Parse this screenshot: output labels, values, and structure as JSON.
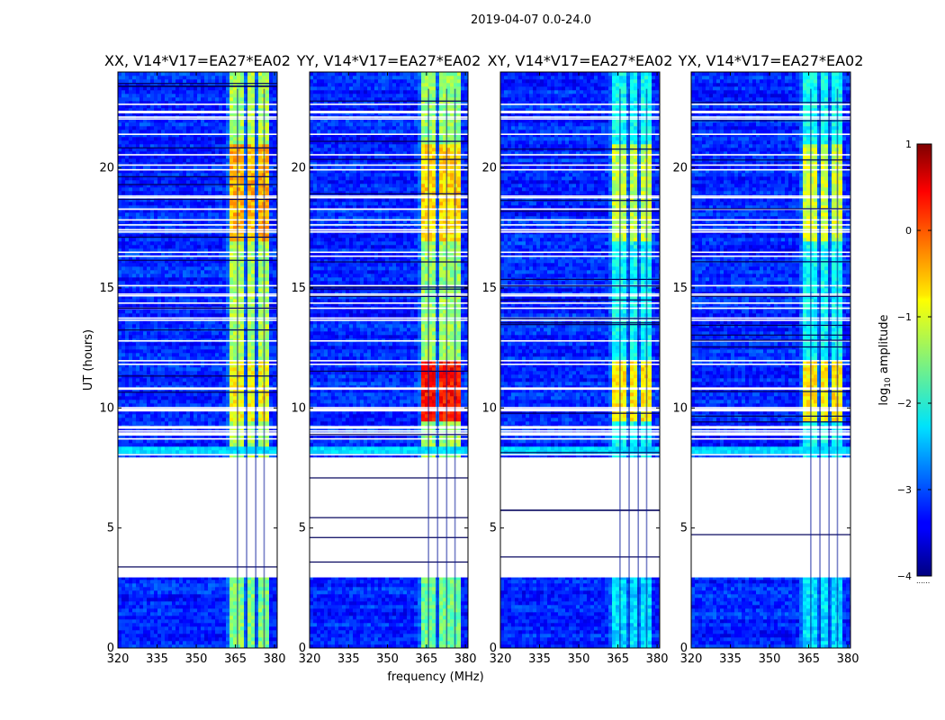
{
  "figure": {
    "suptitle": "2019-04-07 0.0-24.0"
  },
  "chart_data": {
    "type": "heatmap",
    "title": "2019-04-07 0.0-24.0",
    "xlabel": "frequency (MHz)",
    "ylabel": "UT (hours)",
    "xlim": [
      320,
      381
    ],
    "ylim": [
      0,
      24
    ],
    "xticks": [
      320,
      335,
      350,
      365,
      380
    ],
    "yticks": [
      0,
      5,
      10,
      15,
      20
    ],
    "colorbar": {
      "label": "log10 amplitude",
      "label_prefix": "log",
      "label_sub": "10",
      "label_suffix": " amplitude",
      "range": [
        -4,
        1
      ],
      "ticks": [
        -4,
        -3,
        -2,
        -1,
        0,
        1
      ],
      "tick_labels": [
        "−4",
        "−3",
        "−2",
        "−1",
        "0",
        "1"
      ],
      "colormap": "jet",
      "bottom_note": "......"
    },
    "background_level": -3.2,
    "bright_band_mhz": [
      362,
      378
    ],
    "flagged_ut_hours": [
      [
        3.0,
        8.0
      ],
      [
        8.85,
        9.05
      ]
    ],
    "panels": [
      {
        "name": "XX",
        "title": "XX, V14*V17=EA27*EA02",
        "band_peak_log_amp": -0.5,
        "burst_10_12_log_amp": -0.9,
        "burst_17_21_log_amp": -0.5
      },
      {
        "name": "YY",
        "title": "YY, V14*V17=EA27*EA02",
        "band_peak_log_amp": -0.6,
        "burst_10_12_log_amp": 0.3,
        "burst_17_21_log_amp": -0.7
      },
      {
        "name": "XY",
        "title": "XY, V14*V17=EA27*EA02",
        "band_peak_log_amp": -1.3,
        "burst_10_12_log_amp": -0.8,
        "burst_17_21_log_amp": -1.2
      },
      {
        "name": "YX",
        "title": "YX, V14*V17=EA27*EA02",
        "band_peak_log_amp": -1.3,
        "burst_10_12_log_amp": -0.8,
        "burst_17_21_log_amp": -1.1
      }
    ]
  }
}
